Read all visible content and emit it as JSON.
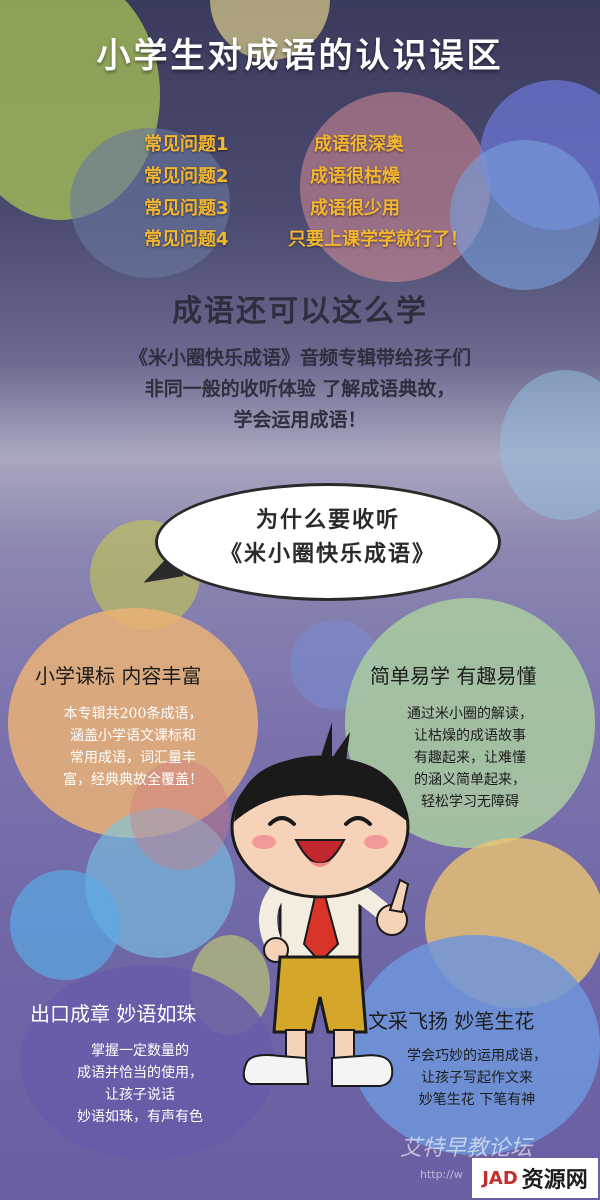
{
  "header": {
    "title": "小学生对成语的认识误区"
  },
  "questions": [
    {
      "label": "常见问题1",
      "value": "成语很深奥"
    },
    {
      "label": "常见问题2",
      "value": "成语很枯燥"
    },
    {
      "label": "常见问题3",
      "value": "成语很少用"
    },
    {
      "label": "常见问题4",
      "value": "只要上课学学就行了！"
    }
  ],
  "subtitle": "成语还可以这么学",
  "intro": {
    "line1": "《米小圈快乐成语》音频专辑带给孩子们",
    "line2": "非同一般的收听体验 了解成语典故，",
    "line3": "学会运用成语！"
  },
  "speech": {
    "line1": "为什么要收听",
    "line2": "《米小圈快乐成语》"
  },
  "features": [
    {
      "title": "小学课标 内容丰富",
      "lines": [
        "本专辑共200条成语，",
        "涵盖小学语文课标和",
        "常用成语，词汇量丰",
        "富，经典典故全覆盖！"
      ]
    },
    {
      "title": "简单易学 有趣易懂",
      "lines": [
        "通过米小圈的解读，",
        "让枯燥的成语故事",
        "有趣起来，让难懂",
        "的涵义简单起来，",
        "轻松学习无障碍"
      ]
    },
    {
      "title": "出口成章 妙语如珠",
      "lines": [
        "掌握一定数量的",
        "成语并恰当的使用，",
        "让孩子说话",
        "妙语如珠，有声有色"
      ]
    },
    {
      "title": "文采飞扬 妙笔生花",
      "lines": [
        "学会巧妙的运用成语，",
        "让孩子写起作文来",
        "妙笔生花 下笔有神"
      ]
    }
  ],
  "watermark": {
    "text": "艾特早教论坛",
    "url": "http://w"
  },
  "logo": {
    "mark": "JAD",
    "text": "资源网"
  },
  "colors": {
    "accent_yellow": "#f3b62e",
    "title_white": "#ffffff",
    "dark_text": "#2d2f3f",
    "tie_red": "#d8342a"
  }
}
